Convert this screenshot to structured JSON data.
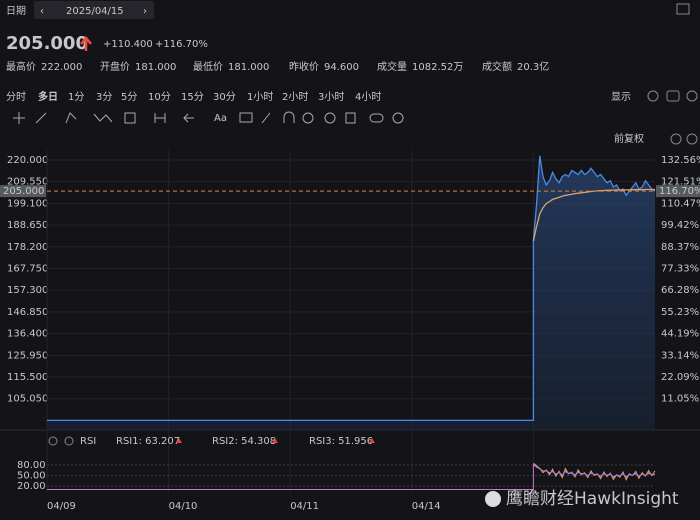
{
  "header": {
    "date_label": "日期",
    "date": "2025/04/15",
    "price": "205.000",
    "change": "+110.400",
    "change_pct": "+116.70%",
    "stats": [
      {
        "label": "最高价",
        "value": "222.000"
      },
      {
        "label": "开盘价",
        "value": "181.000"
      },
      {
        "label": "最低价",
        "value": "181.000"
      },
      {
        "label": "昨收价",
        "value": "94.600"
      },
      {
        "label": "成交量",
        "value": "1082.52万"
      },
      {
        "label": "成交额",
        "value": "20.3亿"
      }
    ]
  },
  "periods": [
    "分时",
    "多日",
    "1分",
    "3分",
    "5分",
    "10分",
    "15分",
    "30分",
    "1小时",
    "2小时",
    "3小时",
    "4小时"
  ],
  "active_period_index": 1,
  "display_menu": "显示",
  "text_tool": "Aa",
  "adjust": "前复权",
  "watermark": "鹰瞻财经HawkInsight",
  "chart_data": [
    {
      "type": "line",
      "xlim": [
        0,
        5
      ],
      "xticks": [
        {
          "value": 0,
          "label": "04/09"
        },
        {
          "value": 1,
          "label": "04/10"
        },
        {
          "value": 2,
          "label": "04/11"
        },
        {
          "value": 3,
          "label": "04/14"
        },
        {
          "value": 4,
          "label": null
        }
      ],
      "x": [
        0,
        4,
        4,
        4.026,
        4.053,
        4.079,
        4.105,
        4.132,
        4.158,
        4.184,
        4.211,
        4.237,
        4.263,
        4.289,
        4.316,
        4.342,
        4.368,
        4.395,
        4.421,
        4.447,
        4.474,
        4.5,
        4.526,
        4.553,
        4.579,
        4.605,
        4.632,
        4.658,
        4.684,
        4.711,
        4.737,
        4.763,
        4.789,
        4.816,
        4.842,
        4.868,
        4.895,
        4.921,
        4.947,
        4.974,
        5
      ],
      "ylim": [
        90,
        224.8
      ],
      "yticks": [
        {
          "value": 220,
          "label": "220.000"
        },
        {
          "value": 209.55,
          "label": "209.550"
        },
        {
          "value": 199.1,
          "label": "199.100"
        },
        {
          "value": 188.65,
          "label": "188.650"
        },
        {
          "value": 178.2,
          "label": "178.200"
        },
        {
          "value": 167.75,
          "label": "167.750"
        },
        {
          "value": 157.3,
          "label": "157.300"
        },
        {
          "value": 146.85,
          "label": "146.850"
        },
        {
          "value": 136.4,
          "label": "136.400"
        },
        {
          "value": 125.95,
          "label": "125.950"
        },
        {
          "value": 115.5,
          "label": "115.500"
        },
        {
          "value": 105.05,
          "label": "105.050"
        }
      ],
      "y2lim": [
        -4.86,
        137.63
      ],
      "y2ticks": [
        {
          "value": 132.56,
          "label": "132.56%"
        },
        {
          "value": 121.51,
          "label": "121.51%"
        },
        {
          "value": 110.47,
          "label": "110.47%"
        },
        {
          "value": 99.42,
          "label": "99.42%"
        },
        {
          "value": 88.37,
          "label": "88.37%"
        },
        {
          "value": 77.33,
          "label": "77.33%"
        },
        {
          "value": 66.28,
          "label": "66.28%"
        },
        {
          "value": 55.23,
          "label": "55.23%"
        },
        {
          "value": 44.19,
          "label": "44.19%"
        },
        {
          "value": 33.14,
          "label": "33.14%"
        },
        {
          "value": 22.09,
          "label": "22.09%"
        },
        {
          "value": 11.05,
          "label": "11.05%"
        }
      ],
      "current": {
        "value": 205,
        "label": "205.000",
        "pct_label": "116.70%",
        "color": "#d9823b"
      },
      "grid": true,
      "series": [
        {
          "color": "#4a8ae8",
          "area": true,
          "values": [
            94.6,
            94.6,
            181,
            199,
            222,
            212,
            208,
            210,
            214,
            211,
            209,
            212,
            213,
            212,
            215,
            214,
            213,
            215,
            213,
            214,
            216,
            214,
            212,
            213,
            211,
            209,
            210,
            207,
            208,
            205,
            206,
            203,
            205,
            207,
            209,
            206,
            207,
            210,
            208,
            206,
            205
          ]
        },
        {
          "color": "#e0a070",
          "values": [
            null,
            null,
            181,
            188,
            194,
            197,
            199,
            200,
            201,
            201.5,
            202,
            202.5,
            203,
            203.2,
            203.5,
            203.8,
            204,
            204.2,
            204.4,
            204.6,
            204.8,
            205,
            205.1,
            205.2,
            205.3,
            205.4,
            205.5,
            205.5,
            205.6,
            205.6,
            205.6,
            205.6,
            205.6,
            205.7,
            205.7,
            205.7,
            205.7,
            205.8,
            205.8,
            205.8,
            205.8
          ]
        }
      ]
    },
    {
      "type": "line",
      "title": "RSI",
      "ylim": [
        0,
        100
      ],
      "yticks": [
        {
          "value": 80,
          "label": "80.00"
        },
        {
          "value": 50,
          "label": "50.00"
        },
        {
          "value": 20,
          "label": "20.00"
        }
      ],
      "series": [
        {
          "name": "RSI1: 63.207",
          "color": "#f0a030",
          "values": [
            null,
            null,
            85,
            78,
            70,
            58,
            66,
            52,
            68,
            48,
            62,
            44,
            70,
            55,
            60,
            46,
            66,
            52,
            58,
            44,
            63,
            50,
            55,
            41,
            60,
            47,
            57,
            39,
            52,
            45,
            60,
            38,
            55,
            50,
            62,
            42,
            58,
            48,
            64,
            50,
            63
          ]
        },
        {
          "name": "RSI2: 54.308",
          "color": "#4aa3e8",
          "values": [
            null,
            null,
            82,
            76,
            70,
            62,
            64,
            56,
            63,
            52,
            60,
            50,
            64,
            56,
            58,
            50,
            61,
            54,
            57,
            48,
            59,
            52,
            54,
            46,
            57,
            50,
            55,
            44,
            52,
            48,
            56,
            44,
            53,
            51,
            58,
            47,
            55,
            50,
            59,
            52,
            54
          ]
        },
        {
          "name": "RSI3: 51.956",
          "color": "#d070d0",
          "values": [
            10,
            10,
            80,
            74,
            69,
            63,
            63,
            58,
            61,
            54,
            58,
            52,
            61,
            56,
            57,
            52,
            59,
            55,
            56,
            50,
            57,
            53,
            53,
            48,
            55,
            51,
            53,
            47,
            51,
            49,
            54,
            47,
            52,
            51,
            55,
            49,
            53,
            51,
            56,
            52,
            52
          ]
        }
      ]
    }
  ]
}
